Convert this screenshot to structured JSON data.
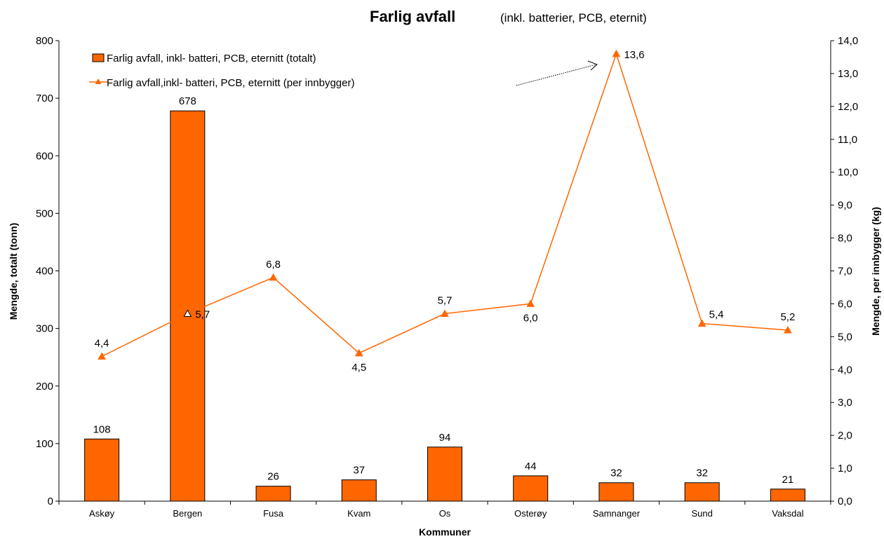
{
  "chart_data": {
    "type": "bar+line",
    "title": "Farlig avfall",
    "subtitle": "(inkl. batterier, PCB, eternit)",
    "xlabel": "Kommuner",
    "ylabel_left": "Mengde, totalt (tonn)",
    "ylabel_right": "Mengde, per innbygger (kg)",
    "categories": [
      "Askøy",
      "Bergen",
      "Fusa",
      "Kvam",
      "Os",
      "Osterøy",
      "Samnanger",
      "Sund",
      "Vaksdal"
    ],
    "ylim_left": [
      0,
      800
    ],
    "yticks_left": [
      "0",
      "100",
      "200",
      "300",
      "400",
      "500",
      "600",
      "700",
      "800"
    ],
    "ylim_right": [
      0,
      14
    ],
    "yticks_right": [
      "0,0",
      "1,0",
      "2,0",
      "3,0",
      "4,0",
      "5,0",
      "6,0",
      "7,0",
      "8,0",
      "9,0",
      "10,0",
      "11,0",
      "12,0",
      "13,0",
      "14,0"
    ],
    "series": [
      {
        "name": "Farlig avfall, inkl- batteri, PCB, eternitt  (totalt)",
        "type": "bar",
        "axis": "left",
        "color": "#FF6600",
        "values": [
          108,
          678,
          26,
          37,
          94,
          44,
          32,
          32,
          21
        ],
        "labels": [
          "108",
          "678",
          "26",
          "37",
          "94",
          "44",
          "32",
          "32",
          "21"
        ]
      },
      {
        "name": "Farlig avfall,inkl- batteri, PCB, eternitt   (per innbygger)",
        "type": "line",
        "axis": "right",
        "color": "#FF6600",
        "marker": "triangle",
        "values": [
          4.4,
          5.7,
          6.8,
          4.5,
          5.7,
          6.0,
          13.6,
          5.4,
          5.2
        ],
        "labels": [
          "4,4",
          "5,7",
          "6,8",
          "4,5",
          "5,7",
          "6,0",
          "13,6",
          "5,4",
          "5,2"
        ]
      }
    ],
    "legend_position": "top-left",
    "grid": false
  }
}
